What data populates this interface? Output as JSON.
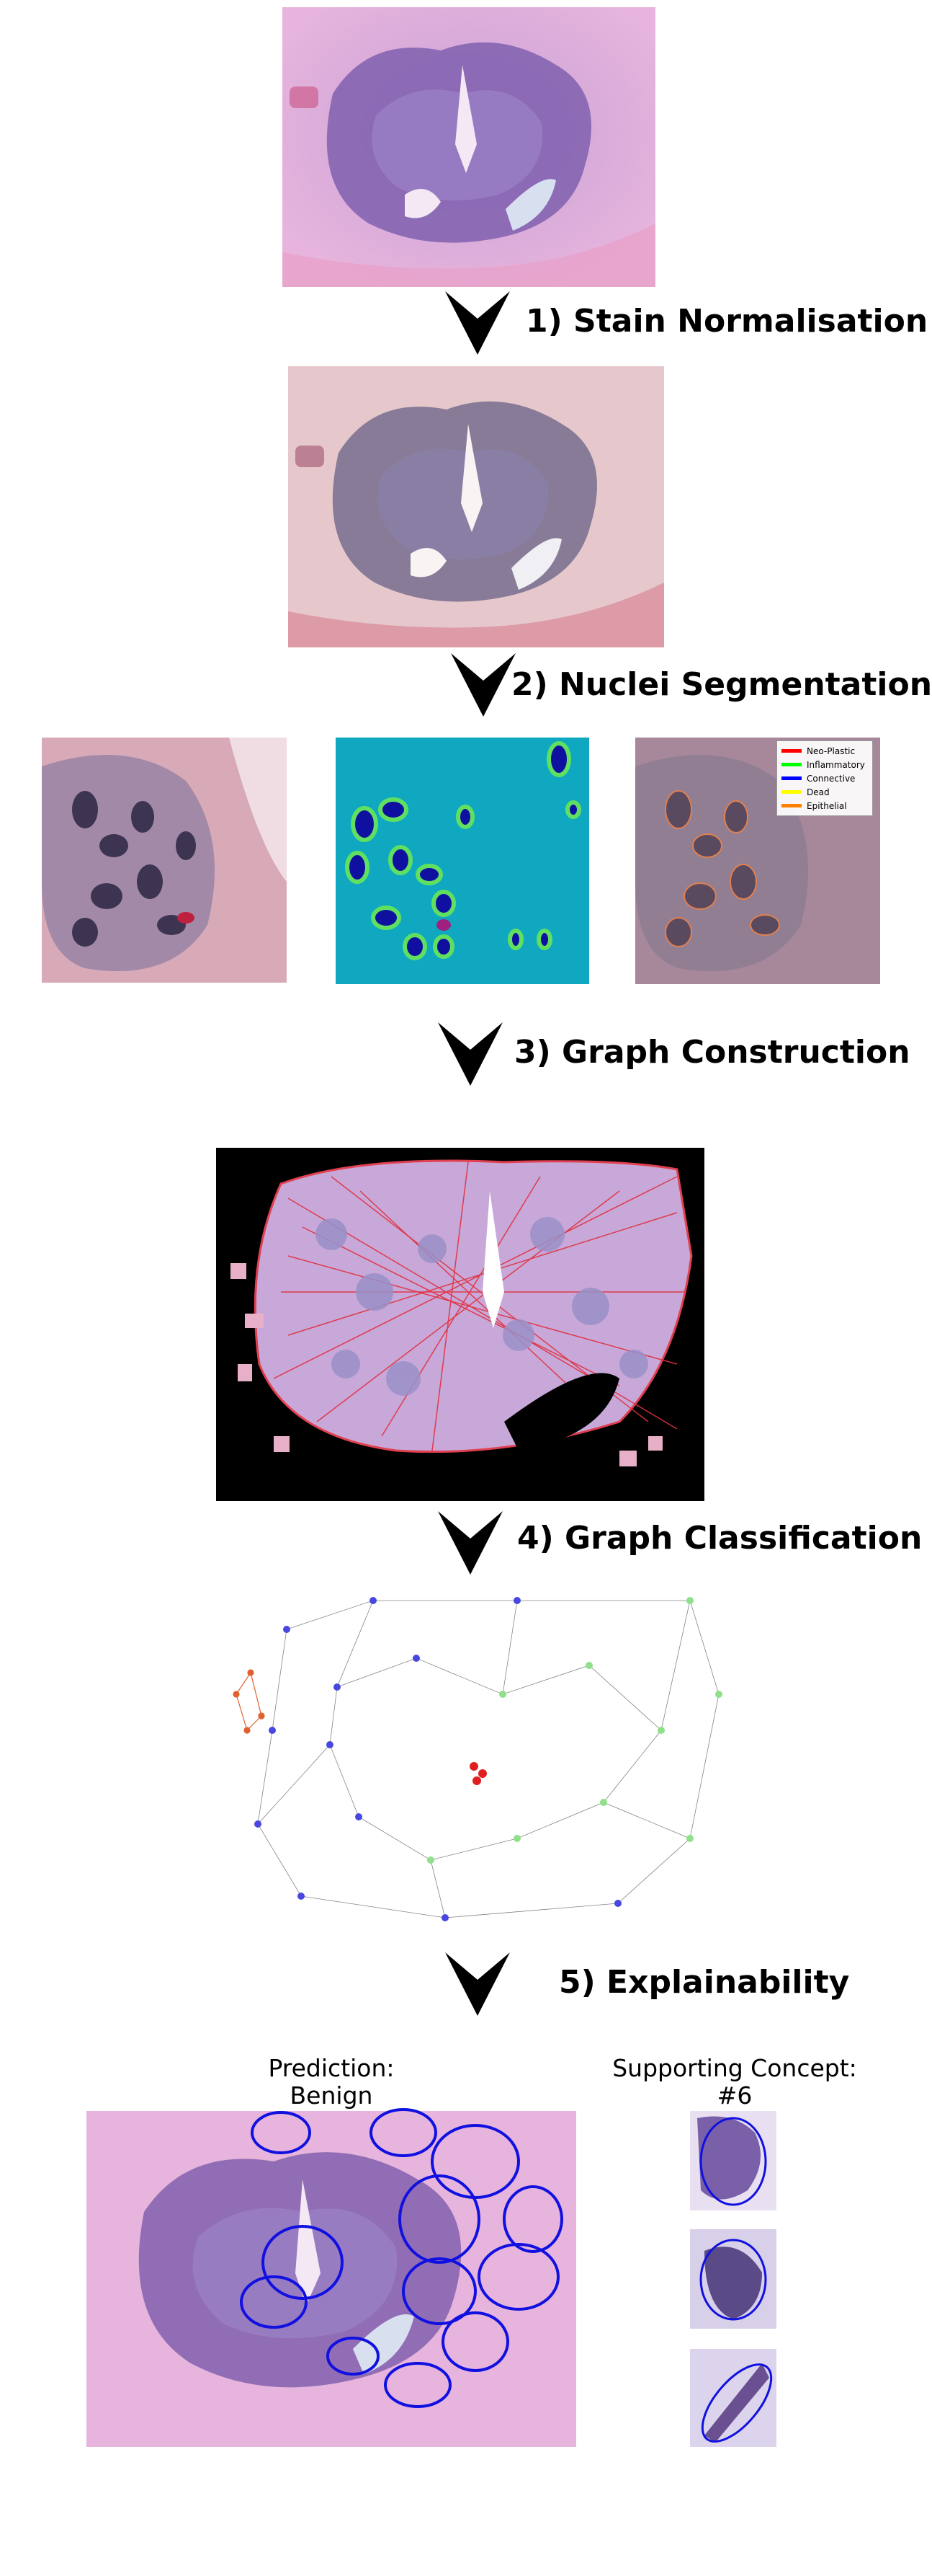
{
  "steps": [
    {
      "label": "1) Stain Normalisation"
    },
    {
      "label": "2) Nuclei Segmentation"
    },
    {
      "label": "3) Graph Construction"
    },
    {
      "label": "4) Graph Classification"
    },
    {
      "label": "5) Explainability"
    }
  ],
  "segmentation_legend": [
    {
      "label": "Neo-Plastic",
      "color": "#ff0000"
    },
    {
      "label": "Inflammatory",
      "color": "#00ff00"
    },
    {
      "label": "Connective",
      "color": "#0000ff"
    },
    {
      "label": "Dead",
      "color": "#ffff00"
    },
    {
      "label": "Epithelial",
      "color": "#ff8000"
    }
  ],
  "explainability": {
    "prediction_label": "Prediction:",
    "prediction_value": "Benign",
    "concept_label": "Supporting Concept:",
    "concept_value": "#6"
  },
  "colors": {
    "tissue_pink": "#e8b8d8",
    "tissue_purple": "#6a4a9a",
    "graph_red": "#d0303a",
    "node_blue": "#4848e0",
    "node_green": "#8ee08a",
    "node_orange": "#e06030",
    "concept_outline": "#1010e0"
  }
}
